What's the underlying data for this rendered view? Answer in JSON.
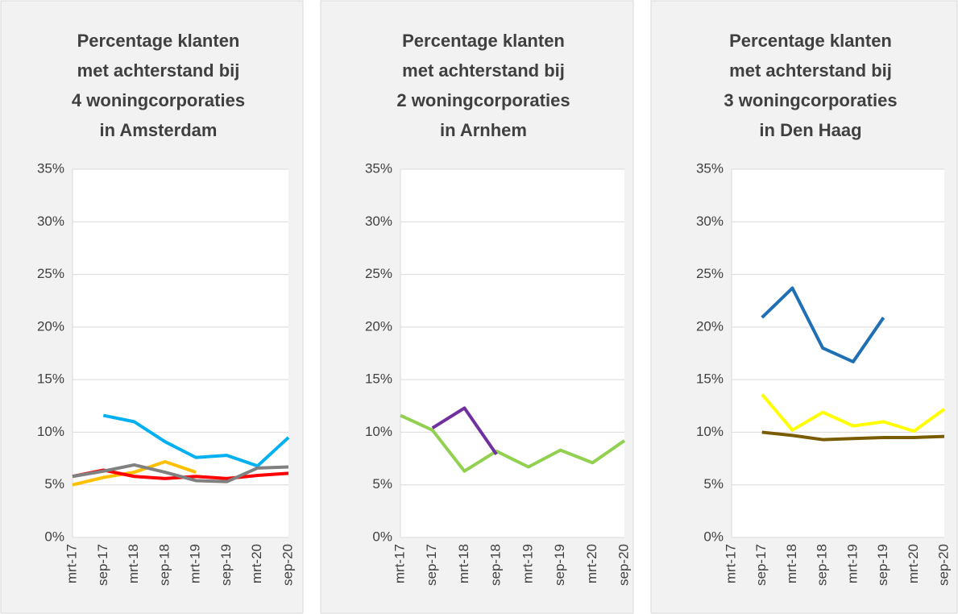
{
  "chart_data": [
    {
      "type": "line",
      "title": [
        "Percentage klanten",
        "met achterstand bij",
        "4 woningcorporaties",
        "in Amsterdam"
      ],
      "categories": [
        "mrt-17",
        "sep-17",
        "mrt-18",
        "sep-18",
        "mrt-19",
        "sep-19",
        "mrt-20",
        "sep-20"
      ],
      "series": [
        {
          "color": "#00b0f0",
          "values": [
            null,
            11.6,
            11.0,
            9.1,
            7.6,
            7.8,
            6.8,
            9.5
          ]
        },
        {
          "color": "#ffc000",
          "values": [
            5.0,
            5.7,
            6.2,
            7.2,
            6.2,
            null,
            null,
            null
          ]
        },
        {
          "color": "#ff0000",
          "values": [
            5.8,
            6.4,
            5.8,
            5.6,
            5.8,
            5.6,
            5.9,
            6.1
          ]
        },
        {
          "color": "#808080",
          "values": [
            5.8,
            6.3,
            6.9,
            6.2,
            5.4,
            5.3,
            6.6,
            6.7
          ]
        }
      ],
      "ylim": [
        0,
        35
      ],
      "yticks": [
        {
          "value": 0,
          "label": "0%"
        },
        {
          "value": 5,
          "label": "5%"
        },
        {
          "value": 10,
          "label": "10%"
        },
        {
          "value": 15,
          "label": "15%"
        },
        {
          "value": 20,
          "label": "20%"
        },
        {
          "value": 25,
          "label": "25%"
        },
        {
          "value": 30,
          "label": "30%"
        },
        {
          "value": 35,
          "label": "35%"
        }
      ],
      "grid": true
    },
    {
      "type": "line",
      "title": [
        "Percentage klanten",
        "met achterstand bij",
        "2 woningcorporaties",
        "in Arnhem"
      ],
      "categories": [
        "mrt-17",
        "sep-17",
        "mrt-18",
        "sep-18",
        "mrt-19",
        "sep-19",
        "mrt-20",
        "sep-20"
      ],
      "series": [
        {
          "color": "#92d050",
          "values": [
            11.6,
            10.2,
            6.3,
            8.2,
            6.7,
            8.3,
            7.1,
            9.2
          ]
        },
        {
          "color": "#7030a0",
          "values": [
            null,
            10.4,
            12.3,
            7.9,
            null,
            null,
            null,
            null
          ]
        }
      ],
      "ylim": [
        0,
        35
      ],
      "yticks": [
        {
          "value": 0,
          "label": "0%"
        },
        {
          "value": 5,
          "label": "5%"
        },
        {
          "value": 10,
          "label": "10%"
        },
        {
          "value": 15,
          "label": "15%"
        },
        {
          "value": 20,
          "label": "20%"
        },
        {
          "value": 25,
          "label": "25%"
        },
        {
          "value": 30,
          "label": "30%"
        },
        {
          "value": 35,
          "label": "35%"
        }
      ],
      "grid": true
    },
    {
      "type": "line",
      "title": [
        "Percentage klanten",
        "met achterstand bij",
        "3 woningcorporaties",
        "in Den Haag"
      ],
      "categories": [
        "mrt-17",
        "sep-17",
        "mrt-18",
        "sep-18",
        "mrt-19",
        "sep-19",
        "mrt-20",
        "sep-20"
      ],
      "series": [
        {
          "color": "#1f6fb5",
          "values": [
            null,
            20.9,
            23.7,
            18.0,
            16.7,
            20.9,
            null,
            null
          ]
        },
        {
          "color": "#ffff00",
          "values": [
            null,
            13.6,
            10.2,
            11.9,
            10.6,
            11.0,
            10.1,
            12.2
          ]
        },
        {
          "color": "#7a5c00",
          "values": [
            null,
            10.0,
            9.7,
            9.3,
            9.4,
            9.5,
            9.5,
            9.6
          ]
        }
      ],
      "ylim": [
        0,
        35
      ],
      "yticks": [
        {
          "value": 0,
          "label": "0%"
        },
        {
          "value": 5,
          "label": "5%"
        },
        {
          "value": 10,
          "label": "10%"
        },
        {
          "value": 15,
          "label": "15%"
        },
        {
          "value": 20,
          "label": "20%"
        },
        {
          "value": 25,
          "label": "25%"
        },
        {
          "value": 30,
          "label": "30%"
        },
        {
          "value": 35,
          "label": "35%"
        }
      ],
      "grid": true
    }
  ]
}
